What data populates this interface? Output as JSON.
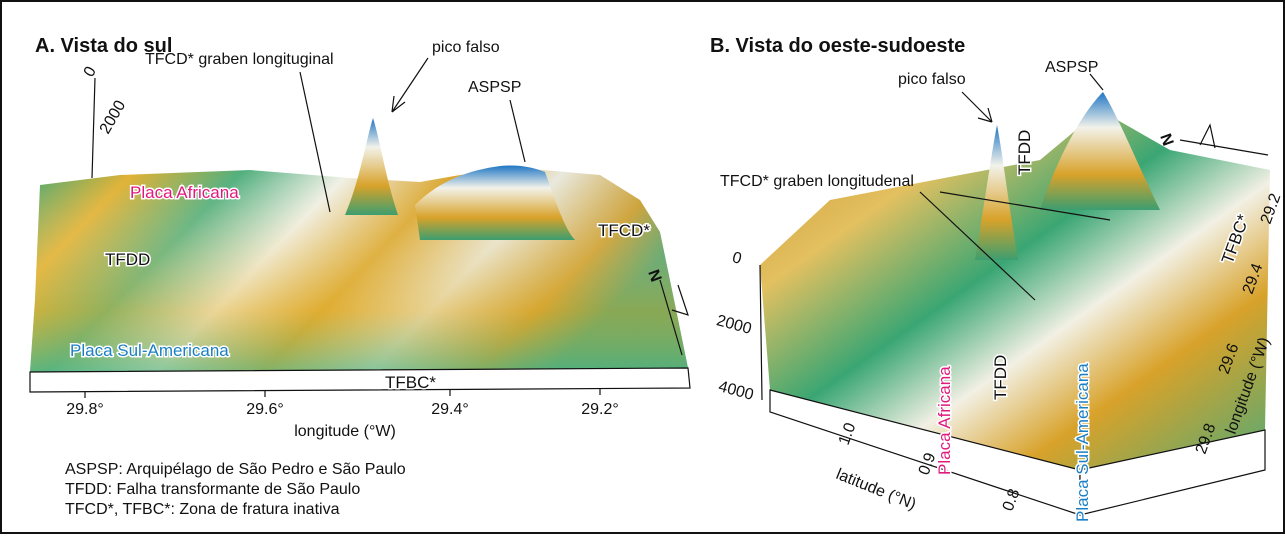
{
  "panels": [
    {
      "title": "A. Vista do sul",
      "depth_ticks": [
        "0",
        "2000"
      ],
      "annotations": {
        "graben": "TFCD* graben longituginal",
        "pico_falso": "pico falso",
        "aspsp": "ASPSP",
        "placa_africana": "Placa Africana",
        "tfdd": "TFDD",
        "tfcd": "TFCD*",
        "placa_sul_americana": "Placa Sul-Americana",
        "tfbc": "TFBC*",
        "north": "N"
      },
      "x_ticks": [
        "29.8°",
        "29.6°",
        "29.4°",
        "29.2°"
      ],
      "x_label": "longitude (°W)",
      "legend": [
        "ASPSP: Arquipélago de São Pedro e São Paulo",
        "TFDD: Falha transformante de São Paulo",
        "TFCD*, TFBC*: Zona de fratura inativa"
      ]
    },
    {
      "title": "B. Vista do oeste-sudoeste",
      "depth_ticks": [
        "0",
        "2000",
        "4000"
      ],
      "annotations": {
        "pico_falso": "pico falso",
        "aspsp": "ASPSP",
        "tfdd_top": "TFDD",
        "north": "N",
        "graben": "TFCD* graben longitudenal",
        "tfbc": "TFBC*",
        "placa_africana": "Placa Africana",
        "tfdd": "TFDD",
        "placa_sul_americana": "Placa Sul-Americana"
      },
      "lat_ticks": [
        "1.0",
        "0.9",
        "0.8"
      ],
      "lat_label": "latitude (°N)",
      "lon_ticks": [
        "29.2",
        "29.4",
        "29.6",
        "29.8"
      ],
      "lon_label": "longitude (°W)"
    }
  ]
}
